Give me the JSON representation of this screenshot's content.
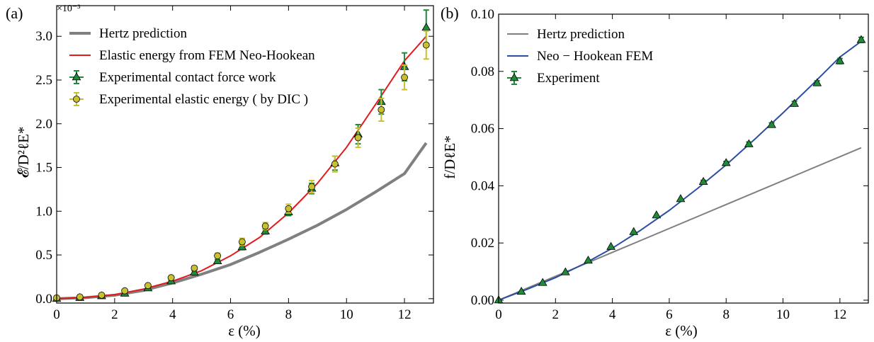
{
  "panels": [
    {
      "label": "(a)",
      "ylabel": "𝓔/D²ℓE*",
      "xlabel": "ε (%)",
      "exponent": "×10⁻³",
      "xticks": [
        "0",
        "2",
        "4",
        "6",
        "8",
        "10",
        "12"
      ],
      "yticks": [
        "0.0",
        "0.5",
        "1.0",
        "1.5",
        "2.0",
        "2.5",
        "3.0"
      ],
      "legend": [
        "Hertz prediction",
        "Elastic energy from FEM Neo-Hookean",
        "Experimental contact force work",
        "Experimental elastic energy ( by DIC )"
      ]
    },
    {
      "label": "(b)",
      "ylabel": "f/DℓE*",
      "xlabel": "ε (%)",
      "xticks": [
        "0",
        "2",
        "4",
        "6",
        "8",
        "10",
        "12"
      ],
      "yticks": [
        "0.00",
        "0.02",
        "0.04",
        "0.06",
        "0.08",
        "0.10"
      ],
      "legend": [
        "Hertz prediction",
        "Neo − Hookean FEM",
        "Experiment"
      ]
    }
  ],
  "colors": {
    "hertz": "#808080",
    "fem_a": "#e31a1c",
    "fem_b": "#2b4ea2",
    "experiment_marker": "#1e8a3a",
    "dic_marker": "#c8c030"
  },
  "chart_data": [
    {
      "type": "line",
      "xlabel": "ε (%)",
      "ylabel": "𝓔/D²ℓE*",
      "xlim": [
        0,
        13
      ],
      "ylim": [
        -5e-05,
        0.00335
      ],
      "y_scale_label": "×10⁻³",
      "legend_position": "top-left",
      "grid": false,
      "series": [
        {
          "name": "Hertz prediction",
          "style": "line",
          "x": [
            0,
            1,
            2,
            3,
            4,
            5,
            6,
            7,
            8,
            9,
            10,
            11,
            12,
            12.75
          ],
          "y": [
            0,
            1.2e-05,
            4e-05,
            9.5e-05,
            0.00018,
            0.00028,
            0.00039,
            0.00053,
            0.00068,
            0.00084,
            0.00102,
            0.00122,
            0.00143,
            0.00178
          ]
        },
        {
          "name": "Elastic energy from FEM Neo-Hookean",
          "style": "line",
          "x": [
            0,
            1,
            2,
            3,
            4,
            5,
            6,
            7,
            8,
            9,
            10,
            11,
            12,
            12.75
          ],
          "y": [
            0,
            1.5e-05,
            4.5e-05,
            0.00011,
            0.0002,
            0.00032,
            0.00049,
            0.0007,
            0.00098,
            0.00132,
            0.00173,
            0.00222,
            0.00272,
            0.003
          ]
        },
        {
          "name": "Experimental contact force work",
          "style": "triangle",
          "x": [
            0,
            0.8,
            1.55,
            2.35,
            3.15,
            3.95,
            4.75,
            5.55,
            6.4,
            7.2,
            8.0,
            8.8,
            9.6,
            10.4,
            11.2,
            12.0,
            12.75
          ],
          "y": [
            0,
            1e-05,
            3e-05,
            6e-05,
            0.00012,
            0.0002,
            0.0003,
            0.00043,
            0.00059,
            0.00077,
            0.00099,
            0.00126,
            0.00155,
            0.00188,
            0.00225,
            0.00265,
            0.0031
          ],
          "err": [
            0,
            0,
            0,
            1e-05,
            1e-05,
            1e-05,
            2e-05,
            2e-05,
            3e-05,
            3e-05,
            4e-05,
            6e-05,
            8e-05,
            0.00011,
            0.00014,
            0.00016,
            0.0002
          ]
        },
        {
          "name": "Experimental elastic energy ( by DIC )",
          "style": "circle",
          "x": [
            0,
            0.8,
            1.55,
            2.35,
            3.15,
            3.95,
            4.75,
            5.55,
            6.4,
            7.2,
            8.0,
            8.8,
            9.6,
            10.4,
            11.2,
            12.0,
            12.75
          ],
          "y": [
            1e-05,
            2e-05,
            4e-05,
            9e-05,
            0.00015,
            0.00024,
            0.00035,
            0.00049,
            0.00065,
            0.00083,
            0.00103,
            0.00128,
            0.00154,
            0.00184,
            0.00216,
            0.00253,
            0.0029
          ],
          "err": [
            0,
            0,
            0,
            1e-05,
            1e-05,
            2e-05,
            2e-05,
            3e-05,
            4e-05,
            4e-05,
            5e-05,
            7e-05,
            9e-05,
            0.00011,
            0.00013,
            0.00014,
            0.00016
          ]
        }
      ]
    },
    {
      "type": "line",
      "xlabel": "ε (%)",
      "ylabel": "f/DℓE*",
      "xlim": [
        0,
        13
      ],
      "ylim": [
        -0.001,
        0.1
      ],
      "legend_position": "top-left",
      "grid": false,
      "series": [
        {
          "name": "Hertz prediction",
          "style": "line",
          "x": [
            0,
            12.75
          ],
          "y": [
            0,
            0.0533
          ]
        },
        {
          "name": "Neo − Hookean FEM",
          "style": "line",
          "x": [
            0,
            1,
            2,
            3,
            4,
            5,
            6,
            7,
            8,
            9,
            10,
            11,
            12,
            12.75
          ],
          "y": [
            0,
            0.0038,
            0.0079,
            0.0127,
            0.0182,
            0.0245,
            0.0314,
            0.0391,
            0.0473,
            0.0562,
            0.0655,
            0.0751,
            0.085,
            0.0905
          ]
        },
        {
          "name": "Experiment",
          "style": "triangle",
          "x": [
            0,
            0.8,
            1.55,
            2.35,
            3.15,
            3.95,
            4.75,
            5.55,
            6.4,
            7.2,
            8.0,
            8.8,
            9.6,
            10.4,
            11.2,
            12.0,
            12.75
          ],
          "y": [
            0,
            0.003,
            0.0061,
            0.0098,
            0.0139,
            0.0187,
            0.0239,
            0.0297,
            0.0354,
            0.0414,
            0.048,
            0.0546,
            0.0613,
            0.0687,
            0.0759,
            0.0836,
            0.091
          ],
          "err": [
            0,
            0,
            0,
            0,
            0,
            0,
            0,
            0,
            0,
            0.0005,
            0.0005,
            0.0007,
            0.0007,
            0.0008,
            0.0008,
            0.0009,
            0.0009
          ]
        }
      ]
    }
  ]
}
